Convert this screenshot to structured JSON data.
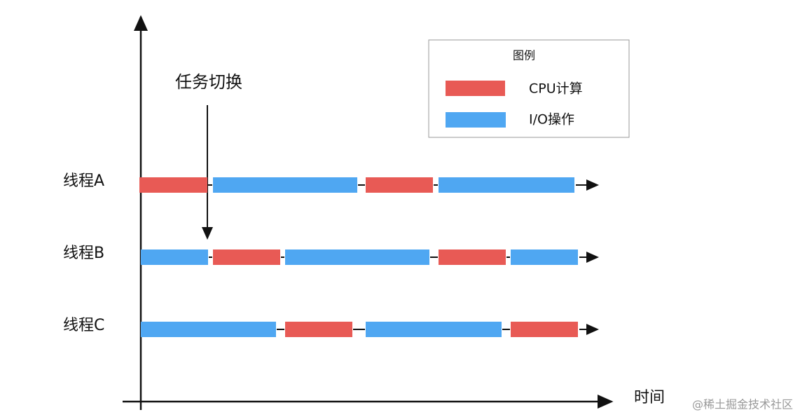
{
  "annotation": "任务切换",
  "legend": {
    "title": "图例",
    "items": [
      "CPU计算",
      "I/O操作"
    ]
  },
  "threads": [
    "线程A",
    "线程B",
    "线程C"
  ],
  "x_axis_label": "时间",
  "watermark": "@稀土掘金技术社区"
}
